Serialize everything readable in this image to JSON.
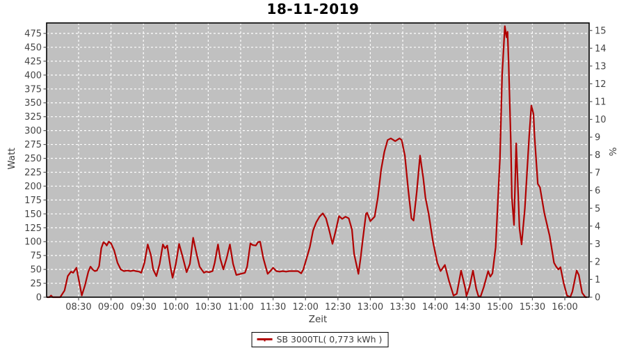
{
  "title": "18-11-2019",
  "colors": {
    "background": "#ffffff",
    "plot_background": "#c0c0c0",
    "grid": "#ffffff",
    "border": "#000000",
    "tick": "#555555",
    "tick_label": "#444444",
    "series_red": "#b00000"
  },
  "chart_data": {
    "type": "line",
    "title": "18-11-2019",
    "xlabel": "Zeit",
    "ylabel_left": "Watt",
    "ylabel_right": "%",
    "grid": true,
    "legend_position": "bottom",
    "legend_label": "SB 3000TL( 0,773 kWh )",
    "x_ticks": [
      "08:30",
      "09:00",
      "09:30",
      "10:00",
      "10:30",
      "11:00",
      "11:30",
      "12:00",
      "12:30",
      "13:00",
      "13:30",
      "14:00",
      "14:30",
      "15:00",
      "15:30",
      "16:00"
    ],
    "x_tick_minutes": [
      510,
      540,
      570,
      600,
      630,
      660,
      690,
      720,
      750,
      780,
      810,
      840,
      870,
      900,
      930,
      960
    ],
    "x_range_minutes": [
      480.4,
      982.5
    ],
    "y_left_ticks": [
      0,
      25,
      50,
      75,
      100,
      125,
      150,
      175,
      200,
      225,
      250,
      275,
      300,
      325,
      350,
      375,
      400,
      425,
      450,
      475
    ],
    "y_left_range": [
      0,
      475
    ],
    "y_right_ticks": [
      0,
      1,
      2,
      3,
      4,
      5,
      6,
      7,
      8,
      9,
      10,
      11,
      12,
      13,
      14,
      15
    ],
    "y_right_range": [
      0,
      15
    ],
    "series": [
      {
        "name": "SB 3000TL( 0,773 kWh )",
        "color": "#b00000",
        "x_unit": "minutes_since_midnight",
        "y_unit": "watt",
        "points": [
          [
            481,
            0
          ],
          [
            483,
            0
          ],
          [
            484.5,
            3
          ],
          [
            486,
            0
          ],
          [
            493,
            0
          ],
          [
            497,
            12
          ],
          [
            500,
            38
          ],
          [
            503,
            46
          ],
          [
            505,
            44
          ],
          [
            508,
            53
          ],
          [
            510.5,
            28
          ],
          [
            513,
            3
          ],
          [
            516,
            22
          ],
          [
            519,
            46
          ],
          [
            521,
            55
          ],
          [
            523,
            50
          ],
          [
            525,
            47
          ],
          [
            527,
            48
          ],
          [
            529,
            56
          ],
          [
            531,
            88
          ],
          [
            533,
            99
          ],
          [
            535,
            96
          ],
          [
            536,
            93
          ],
          [
            538,
            100
          ],
          [
            540,
            97
          ],
          [
            543,
            84
          ],
          [
            546,
            62
          ],
          [
            549,
            50
          ],
          [
            552,
            47
          ],
          [
            555,
            48
          ],
          [
            558,
            47
          ],
          [
            561,
            48
          ],
          [
            563,
            47
          ],
          [
            566,
            46
          ],
          [
            568,
            44
          ],
          [
            571,
            62
          ],
          [
            574,
            95
          ],
          [
            577,
            75
          ],
          [
            579,
            50
          ],
          [
            582,
            38
          ],
          [
            585,
            60
          ],
          [
            588,
            95
          ],
          [
            590,
            88
          ],
          [
            592,
            93
          ],
          [
            595,
            55
          ],
          [
            597,
            35
          ],
          [
            600,
            60
          ],
          [
            603,
            96
          ],
          [
            606,
            75
          ],
          [
            610,
            45
          ],
          [
            613,
            60
          ],
          [
            616,
            107
          ],
          [
            619,
            80
          ],
          [
            622,
            55
          ],
          [
            626,
            44
          ],
          [
            628,
            46
          ],
          [
            631,
            45
          ],
          [
            634,
            47
          ],
          [
            636,
            62
          ],
          [
            639,
            95
          ],
          [
            641,
            70
          ],
          [
            644,
            50
          ],
          [
            647,
            70
          ],
          [
            650,
            95
          ],
          [
            653,
            60
          ],
          [
            656,
            40
          ],
          [
            660,
            42
          ],
          [
            664,
            44
          ],
          [
            666,
            55
          ],
          [
            669,
            97
          ],
          [
            671,
            94
          ],
          [
            674,
            93
          ],
          [
            676,
            99
          ],
          [
            678,
            100
          ],
          [
            681,
            70
          ],
          [
            685,
            42
          ],
          [
            688,
            48
          ],
          [
            690,
            53
          ],
          [
            693,
            47
          ],
          [
            696,
            46
          ],
          [
            699,
            47
          ],
          [
            702,
            46
          ],
          [
            705,
            47
          ],
          [
            708,
            47
          ],
          [
            711,
            47
          ],
          [
            713,
            47
          ],
          [
            716,
            43
          ],
          [
            718,
            50
          ],
          [
            721,
            70
          ],
          [
            724,
            90
          ],
          [
            727,
            120
          ],
          [
            730,
            135
          ],
          [
            733,
            145
          ],
          [
            736,
            151
          ],
          [
            739,
            142
          ],
          [
            742,
            120
          ],
          [
            745,
            96
          ],
          [
            748,
            120
          ],
          [
            751,
            146
          ],
          [
            754,
            141
          ],
          [
            757,
            145
          ],
          [
            760,
            142
          ],
          [
            763,
            122
          ],
          [
            765,
            78
          ],
          [
            767,
            60
          ],
          [
            769,
            42
          ],
          [
            771,
            70
          ],
          [
            773,
            103
          ],
          [
            776,
            150
          ],
          [
            777,
            152
          ],
          [
            780,
            137
          ],
          [
            784,
            145
          ],
          [
            787,
            180
          ],
          [
            790,
            230
          ],
          [
            793,
            262
          ],
          [
            796,
            283
          ],
          [
            799,
            286
          ],
          [
            803,
            281
          ],
          [
            807,
            286
          ],
          [
            809,
            283
          ],
          [
            812,
            255
          ],
          [
            815,
            195
          ],
          [
            818,
            142
          ],
          [
            820,
            138
          ],
          [
            823,
            190
          ],
          [
            826,
            255
          ],
          [
            829,
            215
          ],
          [
            831,
            180
          ],
          [
            834,
            150
          ],
          [
            838,
            100
          ],
          [
            842,
            62
          ],
          [
            845,
            47
          ],
          [
            849,
            58
          ],
          [
            853,
            28
          ],
          [
            857,
            3
          ],
          [
            860,
            6
          ],
          [
            864,
            48
          ],
          [
            868,
            15
          ],
          [
            869,
            2
          ],
          [
            872,
            20
          ],
          [
            875,
            48
          ],
          [
            878,
            15
          ],
          [
            880,
            2
          ],
          [
            882,
            1
          ],
          [
            885,
            18
          ],
          [
            889,
            47
          ],
          [
            891,
            37
          ],
          [
            893,
            43
          ],
          [
            896,
            90
          ],
          [
            900,
            250
          ],
          [
            902,
            400
          ],
          [
            904.5,
            488
          ],
          [
            906,
            468
          ],
          [
            907,
            478
          ],
          [
            908,
            420
          ],
          [
            910,
            280
          ],
          [
            911,
            180
          ],
          [
            913,
            130
          ],
          [
            915,
            277
          ],
          [
            917,
            180
          ],
          [
            918,
            125
          ],
          [
            920,
            95
          ],
          [
            923,
            160
          ],
          [
            927,
            290
          ],
          [
            929,
            345
          ],
          [
            931,
            330
          ],
          [
            932,
            290
          ],
          [
            935,
            204
          ],
          [
            937,
            198
          ],
          [
            941,
            152
          ],
          [
            946,
            110
          ],
          [
            950,
            62
          ],
          [
            952,
            55
          ],
          [
            954,
            50
          ],
          [
            956,
            54
          ],
          [
            959,
            25
          ],
          [
            962,
            3
          ],
          [
            965,
            0
          ],
          [
            967,
            10
          ],
          [
            971,
            48
          ],
          [
            973,
            40
          ],
          [
            976,
            8
          ],
          [
            979,
            0
          ],
          [
            980,
            0
          ]
        ]
      }
    ]
  }
}
